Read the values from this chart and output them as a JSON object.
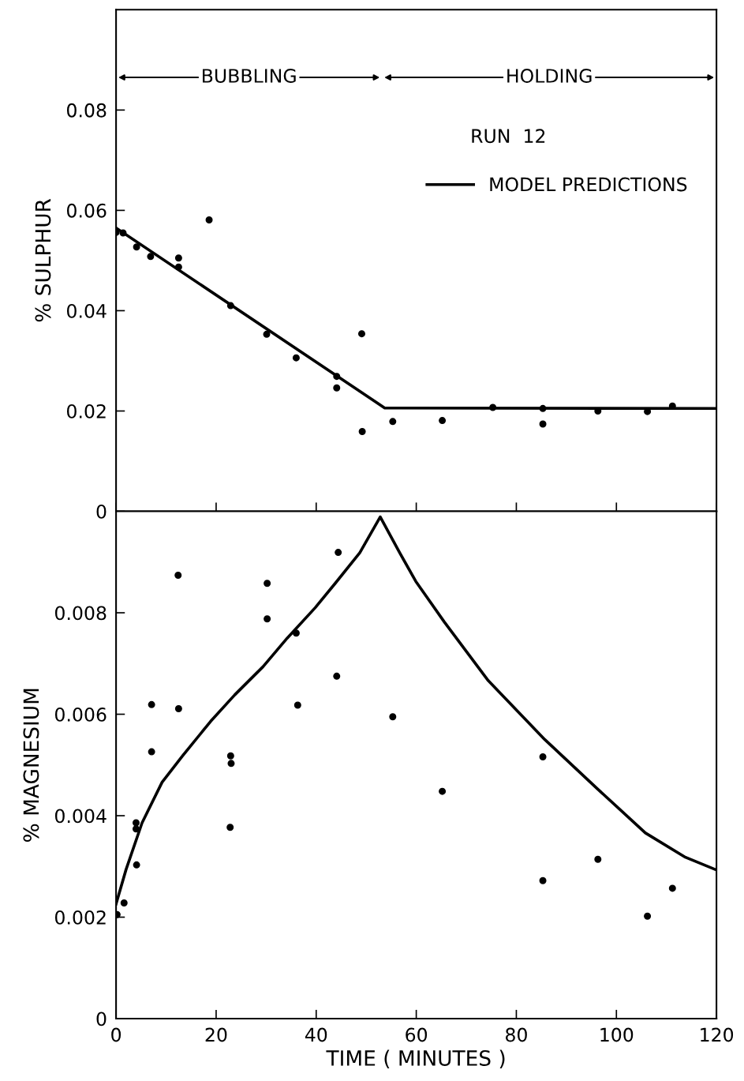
{
  "chart_data": [
    {
      "type": "scatter",
      "ylabel": "% SULPHUR",
      "xlim": [
        0,
        120
      ],
      "xticks": [
        0,
        20,
        40,
        60,
        80,
        100,
        120
      ],
      "ylim": [
        0,
        0.1
      ],
      "yticks": [
        0,
        0.02,
        0.04,
        0.06,
        0.08
      ],
      "tick_labels": "y",
      "marker": "circle",
      "legend": "top right",
      "grid": false,
      "annotations": [
        "BUBBLING",
        "HOLDING",
        "RUN  12"
      ],
      "series": [
        {
          "color": "#000000",
          "x": [
            0,
            1.4,
            4.1,
            6.9,
            12.5,
            12.5,
            18.6,
            22.9,
            30.1,
            36.0,
            44.1,
            44.1,
            49.1,
            49.2,
            55.3,
            65.2,
            75.3,
            85.3,
            85.3,
            96.3,
            106.2,
            111.2
          ],
          "values": [
            0.0556,
            0.0555,
            0.0527,
            0.0508,
            0.0505,
            0.0487,
            0.0581,
            0.041,
            0.0353,
            0.0306,
            0.0269,
            0.0246,
            0.0354,
            0.0159,
            0.0179,
            0.0181,
            0.0207,
            0.0205,
            0.0174,
            0.02,
            0.0199,
            0.021
          ]
        },
        {
          "type": "line",
          "name": "MODEL PREDICTIONS",
          "color": "#000000",
          "line_style": "solid",
          "marker": "none",
          "x": [
            0,
            53.7,
            120
          ],
          "values": [
            0.0565,
            0.0206,
            0.0205
          ]
        }
      ]
    },
    {
      "type": "scatter",
      "xlabel": "TIME ( MINUTES )",
      "ylabel": "% MAGNESIUM",
      "xlim": [
        0,
        120
      ],
      "xticks": [
        0,
        20,
        40,
        60,
        80,
        100,
        120
      ],
      "ylim": [
        0,
        0.01
      ],
      "yticks": [
        0,
        0.002,
        0.004,
        0.006,
        0.008
      ],
      "marker": "circle",
      "grid": false,
      "series": [
        {
          "color": "#000000",
          "x": [
            0.2,
            1.6,
            4.0,
            4.0,
            4.1,
            7.1,
            7.1,
            12.4,
            12.5,
            22.9,
            23.0,
            22.8,
            30.2,
            30.2,
            36.0,
            36.3,
            44.1,
            44.4,
            55.3,
            65.2,
            85.3,
            85.3,
            96.3,
            106.2,
            111.2
          ],
          "values": [
            0.00205,
            0.00228,
            0.00386,
            0.00374,
            0.00303,
            0.00619,
            0.00526,
            0.00874,
            0.00611,
            0.00518,
            0.00503,
            0.00377,
            0.00858,
            0.00788,
            0.0076,
            0.00618,
            0.00675,
            0.00919,
            0.00595,
            0.00448,
            0.00516,
            0.00272,
            0.00314,
            0.00202,
            0.00257
          ]
        },
        {
          "type": "line",
          "color": "#000000",
          "line_style": "solid",
          "marker": "none",
          "x": [
            0,
            2,
            5.2,
            9.2,
            13.3,
            18.9,
            23.7,
            29.4,
            34.2,
            39.8,
            43.8,
            48.7,
            52.8,
            56.7,
            59.9,
            65.6,
            74.4,
            85.7,
            96.1,
            105.8,
            113.8,
            120
          ],
          "values": [
            0.00226,
            0.00294,
            0.00386,
            0.00466,
            0.00518,
            0.00586,
            0.00638,
            0.00694,
            0.0075,
            0.0081,
            0.00858,
            0.00918,
            0.00989,
            0.00918,
            0.00862,
            0.00782,
            0.00666,
            0.0055,
            0.00454,
            0.00366,
            0.00318,
            0.00293
          ]
        }
      ]
    }
  ]
}
